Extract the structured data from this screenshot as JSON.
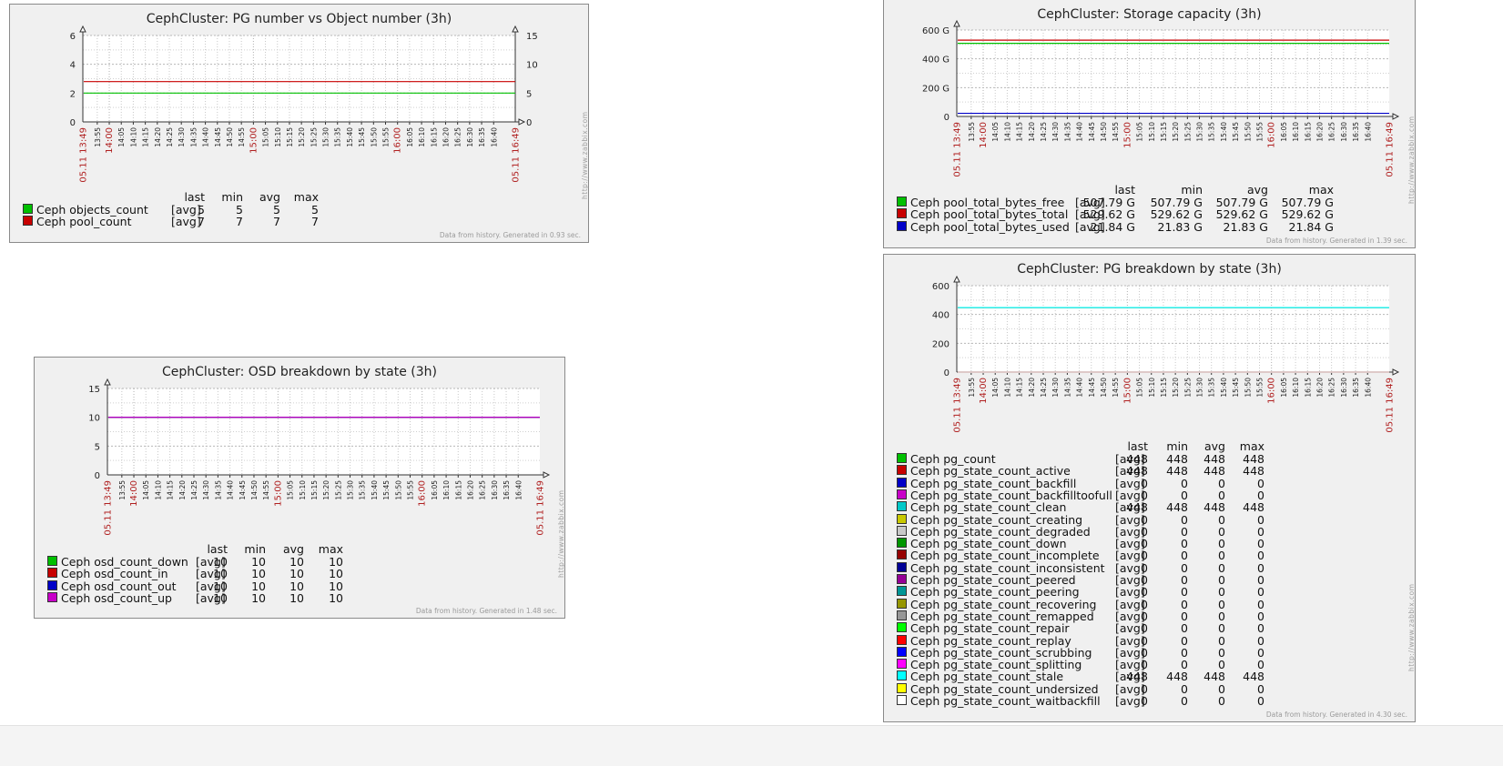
{
  "chart_data": [
    {
      "id": "g1",
      "type": "line",
      "title": "CephCluster: PG number vs Object number (3h)",
      "time_start_label": "05.11 13:49",
      "time_end_label": "05.11 16:49",
      "x_ticks": [
        "13:55",
        "14:00",
        "14:05",
        "14:10",
        "14:15",
        "14:20",
        "14:25",
        "14:30",
        "14:35",
        "14:40",
        "14:45",
        "14:50",
        "14:55",
        "15:00",
        "15:05",
        "15:10",
        "15:15",
        "15:20",
        "15:25",
        "15:30",
        "15:35",
        "15:40",
        "15:45",
        "15:50",
        "15:55",
        "16:00",
        "16:05",
        "16:10",
        "16:15",
        "16:20",
        "16:25",
        "16:30",
        "16:35",
        "16:40"
      ],
      "highlight_ticks": [
        "14:00",
        "15:00",
        "16:00"
      ],
      "ylim": [
        0,
        6
      ],
      "y_ticks": [
        "0",
        "2",
        "4",
        "6"
      ],
      "y2lim": [
        0,
        15
      ],
      "y2_ticks": [
        "0",
        "5",
        "10",
        "15"
      ],
      "series": [
        {
          "name": "Ceph objects_count",
          "fn": "[avg]",
          "color": "#00c000",
          "value": 5,
          "axis": "right",
          "last": "5",
          "min": "5",
          "avg": "5",
          "max": "5"
        },
        {
          "name": "Ceph pool_count",
          "fn": "[avg]",
          "color": "#c80000",
          "value": 7,
          "axis": "right",
          "last": "7",
          "min": "7",
          "avg": "7",
          "max": "7"
        }
      ],
      "legend_headers": [
        "last",
        "min",
        "avg",
        "max"
      ],
      "footer": "Data from history. Generated in 0.93 sec.",
      "watermark": "http://www.zabbix.com"
    },
    {
      "id": "g2",
      "type": "line",
      "title": "CephCluster: Storage capacity (3h)",
      "time_start_label": "05.11 13:49",
      "time_end_label": "05.11 16:49",
      "x_ticks": [
        "13:55",
        "14:00",
        "14:05",
        "14:10",
        "14:15",
        "14:20",
        "14:25",
        "14:30",
        "14:35",
        "14:40",
        "14:45",
        "14:50",
        "14:55",
        "15:00",
        "15:05",
        "15:10",
        "15:15",
        "15:20",
        "15:25",
        "15:30",
        "15:35",
        "15:40",
        "15:45",
        "15:50",
        "15:55",
        "16:00",
        "16:05",
        "16:10",
        "16:15",
        "16:20",
        "16:25",
        "16:30",
        "16:35",
        "16:40"
      ],
      "highlight_ticks": [
        "14:00",
        "15:00",
        "16:00"
      ],
      "ylim": [
        0,
        600
      ],
      "y_ticks": [
        "0",
        "200 G",
        "400 G",
        "600 G"
      ],
      "series": [
        {
          "name": "Ceph pool_total_bytes_free",
          "fn": "[avg]",
          "color": "#00c000",
          "value": 507.79,
          "last": "507.79 G",
          "min": "507.79 G",
          "avg": "507.79 G",
          "max": "507.79 G"
        },
        {
          "name": "Ceph pool_total_bytes_total",
          "fn": "[avg]",
          "color": "#c80000",
          "value": 529.62,
          "last": "529.62 G",
          "min": "529.62 G",
          "avg": "529.62 G",
          "max": "529.62 G"
        },
        {
          "name": "Ceph pool_total_bytes_used",
          "fn": "[avg]",
          "color": "#0000c8",
          "value": 21.84,
          "last": "21.84 G",
          "min": "21.83 G",
          "avg": "21.83 G",
          "max": "21.84 G"
        }
      ],
      "legend_headers": [
        "last",
        "min",
        "avg",
        "max"
      ],
      "footer": "Data from history. Generated in 1.39 sec.",
      "watermark": "http://www.zabbix.com"
    },
    {
      "id": "g3",
      "type": "line",
      "title": "CephCluster: PG breakdown by state (3h)",
      "time_start_label": "05.11 13:49",
      "time_end_label": "05.11 16:49",
      "x_ticks": [
        "13:55",
        "14:00",
        "14:05",
        "14:10",
        "14:15",
        "14:20",
        "14:25",
        "14:30",
        "14:35",
        "14:40",
        "14:45",
        "14:50",
        "14:55",
        "15:00",
        "15:05",
        "15:10",
        "15:15",
        "15:20",
        "15:25",
        "15:30",
        "15:35",
        "15:40",
        "15:45",
        "15:50",
        "15:55",
        "16:00",
        "16:05",
        "16:10",
        "16:15",
        "16:20",
        "16:25",
        "16:30",
        "16:35",
        "16:40"
      ],
      "highlight_ticks": [
        "14:00",
        "15:00",
        "16:00"
      ],
      "ylim": [
        0,
        600
      ],
      "y_ticks": [
        "0",
        "200",
        "400",
        "600"
      ],
      "series": [
        {
          "name": "Ceph pg_count",
          "fn": "[avg]",
          "color": "#00c000",
          "value": 448,
          "last": "448",
          "min": "448",
          "avg": "448",
          "max": "448"
        },
        {
          "name": "Ceph pg_state_count_active",
          "fn": "[avg]",
          "color": "#c80000",
          "value": 448,
          "last": "448",
          "min": "448",
          "avg": "448",
          "max": "448"
        },
        {
          "name": "Ceph pg_state_count_backfill",
          "fn": "[avg]",
          "color": "#0000c8",
          "value": 0,
          "last": "0",
          "min": "0",
          "avg": "0",
          "max": "0"
        },
        {
          "name": "Ceph pg_state_count_backfilltoofull",
          "fn": "[avg]",
          "color": "#c800c8",
          "value": 0,
          "last": "0",
          "min": "0",
          "avg": "0",
          "max": "0"
        },
        {
          "name": "Ceph pg_state_count_clean",
          "fn": "[avg]",
          "color": "#00c8c8",
          "value": 448,
          "last": "448",
          "min": "448",
          "avg": "448",
          "max": "448"
        },
        {
          "name": "Ceph pg_state_count_creating",
          "fn": "[avg]",
          "color": "#c8c800",
          "value": 0,
          "last": "0",
          "min": "0",
          "avg": "0",
          "max": "0"
        },
        {
          "name": "Ceph pg_state_count_degraded",
          "fn": "[avg]",
          "color": "#c8c8c8",
          "value": 0,
          "last": "0",
          "min": "0",
          "avg": "0",
          "max": "0"
        },
        {
          "name": "Ceph pg_state_count_down",
          "fn": "[avg]",
          "color": "#009600",
          "value": 0,
          "last": "0",
          "min": "0",
          "avg": "0",
          "max": "0"
        },
        {
          "name": "Ceph pg_state_count_incomplete",
          "fn": "[avg]",
          "color": "#960000",
          "value": 0,
          "last": "0",
          "min": "0",
          "avg": "0",
          "max": "0"
        },
        {
          "name": "Ceph pg_state_count_inconsistent",
          "fn": "[avg]",
          "color": "#000096",
          "value": 0,
          "last": "0",
          "min": "0",
          "avg": "0",
          "max": "0"
        },
        {
          "name": "Ceph pg_state_count_peered",
          "fn": "[avg]",
          "color": "#960096",
          "value": 0,
          "last": "0",
          "min": "0",
          "avg": "0",
          "max": "0"
        },
        {
          "name": "Ceph pg_state_count_peering",
          "fn": "[avg]",
          "color": "#009696",
          "value": 0,
          "last": "0",
          "min": "0",
          "avg": "0",
          "max": "0"
        },
        {
          "name": "Ceph pg_state_count_recovering",
          "fn": "[avg]",
          "color": "#969600",
          "value": 0,
          "last": "0",
          "min": "0",
          "avg": "0",
          "max": "0"
        },
        {
          "name": "Ceph pg_state_count_remapped",
          "fn": "[avg]",
          "color": "#969696",
          "value": 0,
          "last": "0",
          "min": "0",
          "avg": "0",
          "max": "0"
        },
        {
          "name": "Ceph pg_state_count_repair",
          "fn": "[avg]",
          "color": "#00ff00",
          "value": 0,
          "last": "0",
          "min": "0",
          "avg": "0",
          "max": "0"
        },
        {
          "name": "Ceph pg_state_count_replay",
          "fn": "[avg]",
          "color": "#ff0000",
          "value": 0,
          "last": "0",
          "min": "0",
          "avg": "0",
          "max": "0"
        },
        {
          "name": "Ceph pg_state_count_scrubbing",
          "fn": "[avg]",
          "color": "#0000ff",
          "value": 0,
          "last": "0",
          "min": "0",
          "avg": "0",
          "max": "0"
        },
        {
          "name": "Ceph pg_state_count_splitting",
          "fn": "[avg]",
          "color": "#ff00ff",
          "value": 0,
          "last": "0",
          "min": "0",
          "avg": "0",
          "max": "0"
        },
        {
          "name": "Ceph pg_state_count_stale",
          "fn": "[avg]",
          "color": "#00ffff",
          "value": 448,
          "last": "448",
          "min": "448",
          "avg": "448",
          "max": "448"
        },
        {
          "name": "Ceph pg_state_count_undersized",
          "fn": "[avg]",
          "color": "#ffff00",
          "value": 0,
          "last": "0",
          "min": "0",
          "avg": "0",
          "max": "0"
        },
        {
          "name": "Ceph pg_state_count_waitbackfill",
          "fn": "[avg]",
          "color": "#ffffff",
          "value": 0,
          "last": "0",
          "min": "0",
          "avg": "0",
          "max": "0"
        }
      ],
      "legend_headers": [
        "last",
        "min",
        "avg",
        "max"
      ],
      "footer": "Data from history. Generated in 4.30 sec.",
      "watermark": "http://www.zabbix.com"
    },
    {
      "id": "g4",
      "type": "line",
      "title": "CephCluster: OSD breakdown by state (3h)",
      "time_start_label": "05.11 13:49",
      "time_end_label": "05.11 16:49",
      "x_ticks": [
        "13:55",
        "14:00",
        "14:05",
        "14:10",
        "14:15",
        "14:20",
        "14:25",
        "14:30",
        "14:35",
        "14:40",
        "14:45",
        "14:50",
        "14:55",
        "15:00",
        "15:05",
        "15:10",
        "15:15",
        "15:20",
        "15:25",
        "15:30",
        "15:35",
        "15:40",
        "15:45",
        "15:50",
        "15:55",
        "16:00",
        "16:05",
        "16:10",
        "16:15",
        "16:20",
        "16:25",
        "16:30",
        "16:35",
        "16:40"
      ],
      "highlight_ticks": [
        "14:00",
        "15:00",
        "16:00"
      ],
      "ylim": [
        0,
        15
      ],
      "y_ticks": [
        "0",
        "5",
        "10",
        "15"
      ],
      "series": [
        {
          "name": "Ceph osd_count_down",
          "fn": "[avg]",
          "color": "#00c000",
          "value": 10,
          "last": "10",
          "min": "10",
          "avg": "10",
          "max": "10"
        },
        {
          "name": "Ceph osd_count_in",
          "fn": "[avg]",
          "color": "#c80000",
          "value": 10,
          "last": "10",
          "min": "10",
          "avg": "10",
          "max": "10"
        },
        {
          "name": "Ceph osd_count_out",
          "fn": "[avg]",
          "color": "#0000c8",
          "value": 10,
          "last": "10",
          "min": "10",
          "avg": "10",
          "max": "10"
        },
        {
          "name": "Ceph osd_count_up",
          "fn": "[avg]",
          "color": "#c800c8",
          "value": 10,
          "last": "10",
          "min": "10",
          "avg": "10",
          "max": "10"
        }
      ],
      "legend_headers": [
        "last",
        "min",
        "avg",
        "max"
      ],
      "footer": "Data from history. Generated in 1.48 sec.",
      "watermark": "http://www.zabbix.com"
    }
  ]
}
